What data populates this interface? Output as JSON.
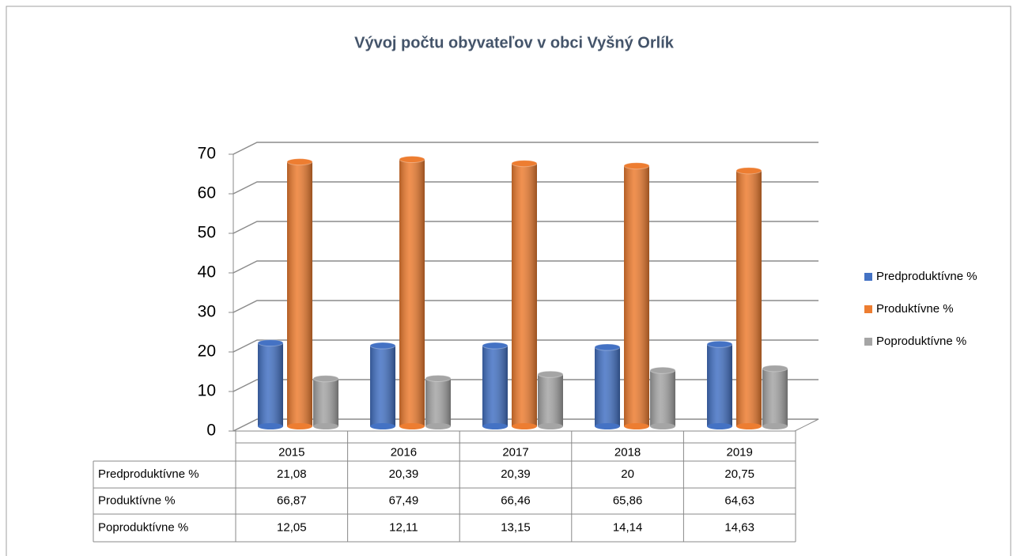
{
  "chart_data": {
    "type": "bar",
    "title": "Vývoj počtu obyvateľov v obci Vyšný Orlík",
    "categories": [
      "2015",
      "2016",
      "2017",
      "2018",
      "2019"
    ],
    "series": [
      {
        "name": "Predproduktívne %",
        "color": "#4472c4",
        "values": [
          21.08,
          20.39,
          20.39,
          20,
          20.75
        ],
        "value_labels": [
          "21,08",
          "20,39",
          "20,39",
          "20",
          "20,75"
        ]
      },
      {
        "name": "Produktívne %",
        "color": "#ed7d31",
        "values": [
          66.87,
          67.49,
          66.46,
          65.86,
          64.63
        ],
        "value_labels": [
          "66,87",
          "67,49",
          "66,46",
          "65,86",
          "64,63"
        ]
      },
      {
        "name": "Poproduktívne %",
        "color": "#a5a5a5",
        "values": [
          12.05,
          12.11,
          13.15,
          14.14,
          14.63
        ],
        "value_labels": [
          "12,05",
          "12,11",
          "13,15",
          "14,14",
          "14,63"
        ]
      }
    ],
    "ylim": [
      0,
      70
    ],
    "yticks": [
      0,
      10,
      20,
      30,
      40,
      50,
      60,
      70
    ],
    "grid": true,
    "legend": "right"
  }
}
